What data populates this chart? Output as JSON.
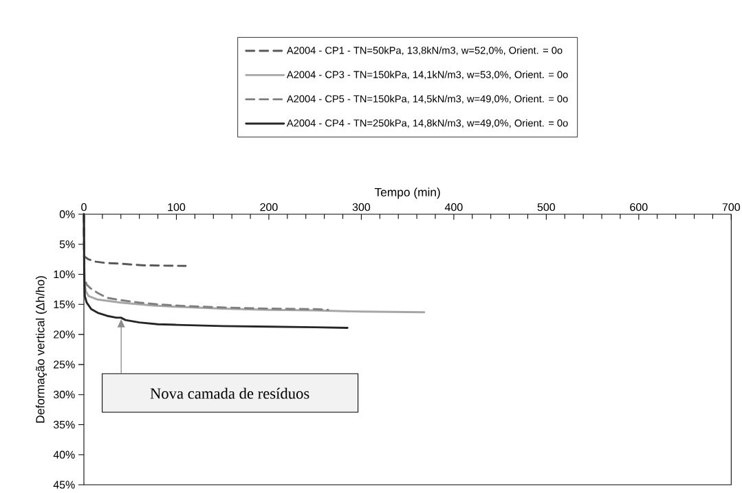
{
  "chart_data": {
    "type": "line",
    "xlabel": "Tempo (min)",
    "ylabel": "Deformação vertical (Δh/ho)",
    "xlim": [
      0,
      700
    ],
    "xticks": [
      0,
      100,
      200,
      300,
      400,
      500,
      600,
      700
    ],
    "ylim": [
      45,
      0
    ],
    "yticks": [
      {
        "value": 0,
        "label": "0%"
      },
      {
        "value": 5,
        "label": "5%"
      },
      {
        "value": 10,
        "label": "10%"
      },
      {
        "value": 15,
        "label": "15%"
      },
      {
        "value": 20,
        "label": "20%"
      },
      {
        "value": 25,
        "label": "25%"
      },
      {
        "value": 30,
        "label": "30%"
      },
      {
        "value": 35,
        "label": "35%"
      },
      {
        "value": 40,
        "label": "40%"
      },
      {
        "value": 45,
        "label": "45%"
      }
    ],
    "grid": false,
    "legend": "top",
    "marker": "none",
    "series": [
      {
        "name": "A2004 - CP1 - TN=50kPa, 13,8kN/m3, w=52,0%, Orient. = 0o",
        "color": "#595959",
        "line_style": "dashed",
        "x": [
          0,
          0.2,
          5,
          13,
          23,
          37,
          55,
          65,
          110
        ],
        "values": [
          0,
          7.0,
          7.5,
          7.9,
          8.1,
          8.2,
          8.4,
          8.5,
          8.6
        ]
      },
      {
        "name": "A2004 - CP3 - TN=150kPa, 14,1kN/m3, w=53,0%, Orient. = 0o",
        "color": "#a6a6a6",
        "line_style": "solid",
        "x": [
          0,
          0.7,
          2,
          5,
          15,
          40,
          75,
          100,
          150,
          200,
          250,
          300,
          368
        ],
        "values": [
          0,
          11.3,
          12.8,
          13.6,
          14.2,
          14.7,
          15.2,
          15.4,
          15.7,
          15.9,
          16.0,
          16.2,
          16.3
        ]
      },
      {
        "name": "A2004 - CP5 - TN=150kPa, 14,5kN/m3, w=49,0%, Orient. = 0o",
        "color": "#7f7f7f",
        "line_style": "dashed",
        "x": [
          0,
          0.5,
          3,
          7,
          15,
          25,
          40,
          60,
          80,
          100,
          130,
          170,
          200,
          250,
          264
        ],
        "values": [
          0,
          10.6,
          11.7,
          12.3,
          13.1,
          13.9,
          14.3,
          14.7,
          15.0,
          15.2,
          15.4,
          15.6,
          15.7,
          15.8,
          15.9
        ]
      },
      {
        "name": "A2004 - CP4 - TN=250kPa, 14,8kN/m3, w=49,0%, Orient. = 0o",
        "color": "#262626",
        "line_style": "solid",
        "x": [
          0,
          0.3,
          1,
          3,
          8,
          15,
          25,
          35,
          40,
          45,
          60,
          80,
          100,
          150,
          200,
          250,
          285
        ],
        "values": [
          0,
          10.0,
          13.6,
          14.7,
          15.8,
          16.4,
          16.9,
          17.2,
          17.2,
          17.6,
          18.0,
          18.3,
          18.4,
          18.6,
          18.7,
          18.8,
          18.9
        ]
      }
    ],
    "annotations": [
      "Nova camada de resíduos"
    ]
  }
}
